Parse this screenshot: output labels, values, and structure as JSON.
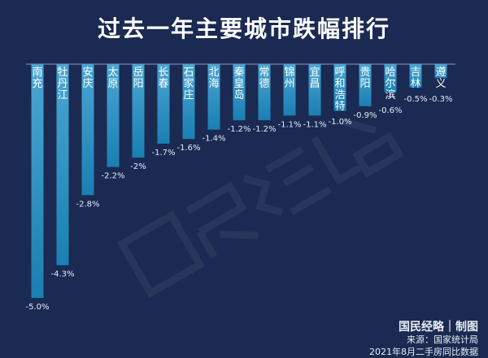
{
  "chart_data": {
    "type": "bar",
    "title": "过去一年主要城市跌幅排行",
    "categories": [
      "南充",
      "牡丹江",
      "安庆",
      "太原",
      "岳阳",
      "长春",
      "石家庄",
      "北海",
      "秦皇岛",
      "常德",
      "锦州",
      "宜昌",
      "呼和浩特",
      "贵阳",
      "哈尔滨",
      "吉林",
      "遵义"
    ],
    "values": [
      -5.0,
      -4.3,
      -2.8,
      -2.2,
      -2,
      -1.7,
      -1.6,
      -1.4,
      -1.2,
      -1.2,
      -1.1,
      -1.1,
      -1.0,
      -0.9,
      -0.6,
      -0.5,
      -0.3
    ],
    "data_labels": [
      "-5.0%",
      "-4.3%",
      "-2.8%",
      "-2.2%",
      "-2%",
      "-1.7%",
      "-1.6%",
      "-1.4%",
      "-1.2%",
      "-1.2%",
      "-1.1%",
      "-1.1%",
      "-1.0%",
      "-0.9%",
      "-0.6%",
      "-0.5%",
      "-0.3%"
    ],
    "unit": "%",
    "ylim": [
      -5.0,
      0
    ],
    "grid": false,
    "legend": "none",
    "colors": {
      "background": "#1b2a52",
      "bar_top": "#4ba6d2",
      "bar_bottom": "#1a7fb3"
    }
  },
  "watermark": "国民经略",
  "footer": {
    "brand": "国民经略｜制图",
    "source": "来源：国家统计局",
    "note": "2021年8月二手房同比数据"
  }
}
